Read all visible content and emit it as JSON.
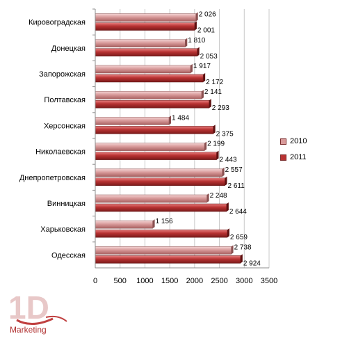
{
  "chart_data": {
    "type": "bar",
    "orientation": "horizontal",
    "categories": [
      "Кировоградская",
      "Донецкая",
      "Запорожская",
      "Полтавская",
      "Херсонская",
      "Николаевская",
      "Днепропетровская",
      "Винницкая",
      "Харьковская",
      "Одесская"
    ],
    "series": [
      {
        "name": "2010",
        "values": [
          2026,
          1810,
          1917,
          2141,
          1484,
          2199,
          2557,
          2248,
          1156,
          2738
        ],
        "labels": [
          "2 026",
          "1 810",
          "1 917",
          "2 141",
          "1 484",
          "2 199",
          "2 557",
          "2 248",
          "1 156",
          "2 738"
        ],
        "color": "#d89a9a"
      },
      {
        "name": "2011",
        "values": [
          2001,
          2053,
          2172,
          2293,
          2375,
          2443,
          2611,
          2644,
          2659,
          2924
        ],
        "labels": [
          "2 001",
          "2 053",
          "2 172",
          "2 293",
          "2 375",
          "2 443",
          "2 611",
          "2 644",
          "2 659",
          "2 924"
        ],
        "color": "#b83232"
      }
    ],
    "xlim": [
      0,
      3500
    ],
    "xticks": [
      "0",
      "500",
      "1000",
      "1500",
      "2000",
      "2500",
      "3000",
      "3500"
    ],
    "grid": true,
    "legend_position": "right"
  },
  "logo": {
    "brand": "1D",
    "text": "Marketing"
  }
}
